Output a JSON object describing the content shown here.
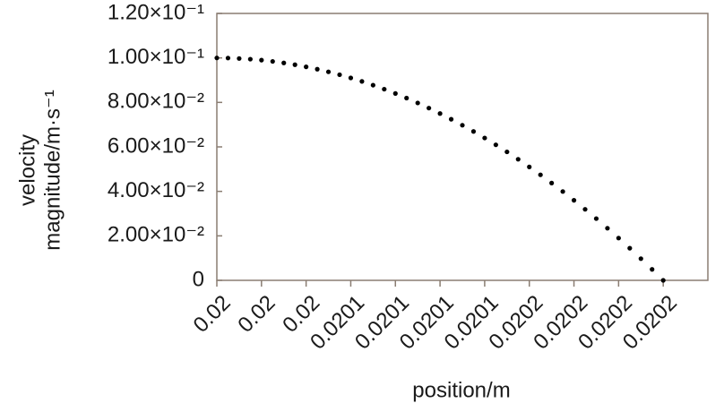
{
  "chart_data": {
    "type": "scatter",
    "xlabel": "position/m",
    "ylabel": [
      "velocity",
      "magnitude/m·s⁻¹"
    ],
    "xlim": [
      0.019985,
      0.020249
    ],
    "ylim": [
      0,
      0.12
    ],
    "xticks": [
      {
        "value": 0.019985,
        "label": "0.02"
      },
      {
        "value": 0.020009,
        "label": "0.02"
      },
      {
        "value": 0.020033,
        "label": "0.02"
      },
      {
        "value": 0.020057,
        "label": "0.0201"
      },
      {
        "value": 0.020081,
        "label": "0.0201"
      },
      {
        "value": 0.020105,
        "label": "0.0201"
      },
      {
        "value": 0.020129,
        "label": "0.0201"
      },
      {
        "value": 0.020153,
        "label": "0.0202"
      },
      {
        "value": 0.020177,
        "label": "0.0202"
      },
      {
        "value": 0.020201,
        "label": "0.0202"
      },
      {
        "value": 0.020225,
        "label": "0.0202"
      }
    ],
    "yticks": [
      0,
      {
        "value": 0.02,
        "label": "2.00×10⁻²"
      },
      {
        "value": 0.04,
        "label": "4.00×10⁻²"
      },
      {
        "value": 0.06,
        "label": "6.00×10⁻²"
      },
      {
        "value": 0.08,
        "label": "8.00×10⁻²"
      },
      {
        "value": 0.1,
        "label": "1.00×10⁻¹"
      },
      {
        "value": 0.12,
        "label": "1.20×10⁻¹"
      }
    ],
    "color": "#000000",
    "x": [
      0.019985,
      0.019991,
      0.019997,
      0.020003,
      0.020009,
      0.020015,
      0.020021,
      0.020027,
      0.020033,
      0.020039,
      0.020045,
      0.020051,
      0.020057,
      0.020063,
      0.020069,
      0.020075,
      0.020081,
      0.020087,
      0.020093,
      0.020099,
      0.020105,
      0.020111,
      0.020117,
      0.020123,
      0.020129,
      0.020135,
      0.020141,
      0.020147,
      0.020153,
      0.020159,
      0.020165,
      0.020171,
      0.020177,
      0.020183,
      0.020189,
      0.020195,
      0.020201,
      0.020207,
      0.020213,
      0.020219,
      0.020225
    ],
    "values": [
      0.1,
      0.09994,
      0.09975,
      0.09944,
      0.099,
      0.09844,
      0.09775,
      0.09694,
      0.096,
      0.09494,
      0.09375,
      0.09244,
      0.091,
      0.08944,
      0.08775,
      0.08594,
      0.084,
      0.08194,
      0.07975,
      0.07744,
      0.075,
      0.07244,
      0.06975,
      0.06694,
      0.064,
      0.06094,
      0.05775,
      0.05444,
      0.051,
      0.04744,
      0.04375,
      0.03994,
      0.036,
      0.03194,
      0.02775,
      0.02344,
      0.019,
      0.01444,
      0.00975,
      0.00494,
      0
    ]
  }
}
